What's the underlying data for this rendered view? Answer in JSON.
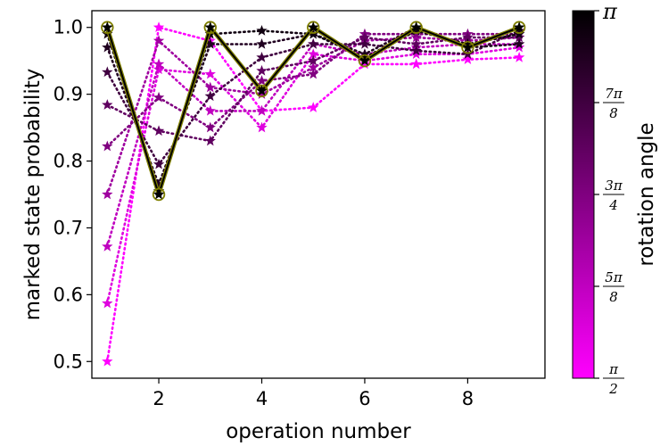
{
  "chart_data": {
    "type": "scatter",
    "xlabel": "operation number",
    "ylabel": "marked state probability",
    "xlim": [
      0.7,
      9.5
    ],
    "ylim": [
      0.475,
      1.025
    ],
    "x_ticks": [
      2,
      4,
      6,
      8
    ],
    "x_tick_labels": [
      "2",
      "4",
      "6",
      "8"
    ],
    "y_ticks": [
      0.5,
      0.6,
      0.7,
      0.8,
      0.9,
      1.0
    ],
    "y_tick_labels": [
      "0.5",
      "0.6",
      "0.7",
      "0.8",
      "0.9",
      "1.0"
    ],
    "grid": false,
    "line_style": "dotted",
    "marker": "star",
    "x": [
      1,
      2,
      3,
      4,
      5,
      6,
      7,
      8,
      9
    ],
    "highlight": {
      "line_color": "#000000",
      "halo_color": "#808000",
      "marker_edge_color": "#808000",
      "values": [
        1.0,
        0.75,
        1.0,
        0.905,
        1.0,
        0.95,
        1.0,
        0.97,
        1.0
      ]
    },
    "colorbar": {
      "label": "rotation angle",
      "range": [
        "π/2",
        "π"
      ],
      "colors": [
        "#ff00ff",
        "#000000"
      ],
      "ticks": [
        {
          "num": "π",
          "den": ""
        },
        {
          "num": "7π",
          "den": "8"
        },
        {
          "num": "3π",
          "den": "4"
        },
        {
          "num": "5π",
          "den": "8"
        },
        {
          "num": "π",
          "den": "2"
        }
      ]
    },
    "series": [
      {
        "t": 0.0,
        "values": [
          0.5,
          1.0,
          0.98,
          0.875,
          0.88,
          0.945,
          0.945,
          0.952,
          0.955
        ]
      },
      {
        "t": 0.125,
        "values": [
          0.587,
          0.937,
          0.93,
          0.85,
          0.96,
          0.95,
          0.96,
          0.96,
          0.97
        ]
      },
      {
        "t": 0.25,
        "values": [
          0.672,
          0.945,
          0.875,
          0.875,
          0.975,
          0.96,
          0.97,
          0.975,
          0.975
        ]
      },
      {
        "t": 0.375,
        "values": [
          0.75,
          0.98,
          0.91,
          0.9,
          0.94,
          0.98,
          0.985,
          0.98,
          0.985
        ]
      },
      {
        "t": 0.5,
        "values": [
          0.822,
          0.895,
          0.85,
          0.92,
          0.93,
          0.99,
          0.99,
          0.99,
          0.99
        ]
      },
      {
        "t": 0.625,
        "values": [
          0.884,
          0.845,
          0.83,
          0.935,
          0.95,
          0.985,
          0.975,
          0.985,
          0.985
        ]
      },
      {
        "t": 0.75,
        "values": [
          0.933,
          0.795,
          0.897,
          0.955,
          0.975,
          0.975,
          0.965,
          0.96,
          0.995
        ]
      },
      {
        "t": 0.875,
        "values": [
          0.97,
          0.765,
          0.975,
          0.975,
          0.99,
          0.96,
          1.0,
          0.97,
          0.975
        ]
      },
      {
        "t": 0.9375,
        "values": [
          0.99,
          0.755,
          0.99,
          0.995,
          0.99,
          0.955,
          0.995,
          0.975,
          0.99
        ]
      },
      {
        "t": 1.0,
        "values": [
          1.0,
          0.75,
          1.0,
          0.905,
          1.0,
          0.95,
          1.0,
          0.97,
          1.0
        ]
      }
    ]
  }
}
